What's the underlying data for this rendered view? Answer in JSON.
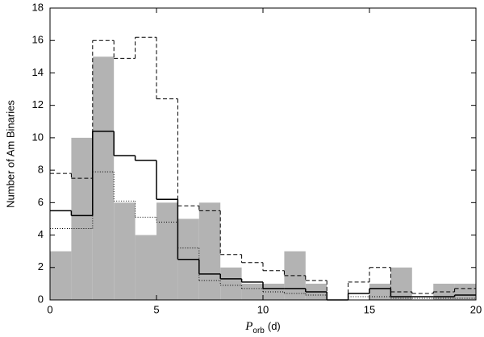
{
  "chart_data": {
    "type": "histogram",
    "bins": [
      0,
      1,
      2,
      3,
      4,
      5,
      6,
      7,
      8,
      9,
      10,
      11,
      12,
      13,
      14,
      15,
      16,
      17,
      18,
      19,
      20
    ],
    "values": [
      3,
      10,
      15,
      6,
      4,
      6,
      5,
      6,
      2,
      1,
      1,
      3,
      1,
      0,
      0,
      1,
      2,
      0,
      1,
      1
    ],
    "color": "#b3b3b3",
    "series": [
      {
        "style": "dashed",
        "color": "#000000",
        "values": [
          7.8,
          7.5,
          16,
          14.9,
          16.2,
          12.4,
          5.8,
          5.5,
          2.8,
          2.3,
          1.8,
          1.5,
          1.2,
          0,
          1.1,
          2.0,
          0.5,
          0.4,
          0.5,
          0.7
        ]
      },
      {
        "style": "solid",
        "color": "#000000",
        "values": [
          5.5,
          5.2,
          10.4,
          8.9,
          8.6,
          6.2,
          2.5,
          1.6,
          1.3,
          1.1,
          0.7,
          0.7,
          0.5,
          0,
          0.4,
          0.7,
          0.2,
          0.2,
          0.2,
          0.3
        ]
      },
      {
        "style": "dotted",
        "color": "#000000",
        "values": [
          4.4,
          4.4,
          7.9,
          6.1,
          5.1,
          4.8,
          3.2,
          1.2,
          0.9,
          0.7,
          0.5,
          0.4,
          0.3,
          0,
          0.2,
          0.2,
          0.1,
          0.1,
          0.1,
          0.1
        ]
      }
    ],
    "xlabel": {
      "symbol": "P",
      "subscript": "orb",
      "unit": "(d)"
    },
    "ylabel": "Number of Am Binaries",
    "xlim": [
      0,
      20
    ],
    "xticks": [
      0,
      5,
      10,
      15,
      20
    ],
    "ylim": [
      0,
      18
    ],
    "yticks": [
      0,
      2,
      4,
      6,
      8,
      10,
      12,
      14,
      16,
      18
    ],
    "grid": false
  }
}
